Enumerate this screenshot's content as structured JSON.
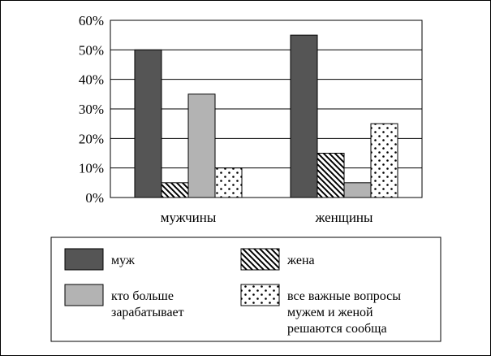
{
  "chart_data": {
    "type": "bar",
    "categories": [
      "мужчины",
      "женщины"
    ],
    "series": [
      {
        "name": "муж",
        "values": [
          50,
          55
        ],
        "fill": "solid-dark",
        "color": "#555555"
      },
      {
        "name": "жена",
        "values": [
          5,
          15
        ],
        "fill": "diagonal-hatch",
        "color": "#000000"
      },
      {
        "name": "кто больше зарабатывает",
        "values": [
          35,
          5
        ],
        "fill": "solid-light",
        "color": "#b3b3b3"
      },
      {
        "name": "все важные вопросы мужем и женой решаются сообща",
        "values": [
          10,
          25
        ],
        "fill": "dotted",
        "color": "#000000"
      }
    ],
    "ylim": [
      0,
      60
    ],
    "yticks": [
      "0%",
      "10%",
      "20%",
      "30%",
      "40%",
      "50%",
      "60%"
    ],
    "grid": true,
    "legend_position": "bottom",
    "legend": [
      {
        "lines": [
          "муж"
        ]
      },
      {
        "lines": [
          "жена"
        ]
      },
      {
        "lines": [
          "кто больше",
          "зарабатывает"
        ]
      },
      {
        "lines": [
          "все важные вопросы",
          "мужем и женой",
          "решаются сообща"
        ]
      }
    ]
  }
}
